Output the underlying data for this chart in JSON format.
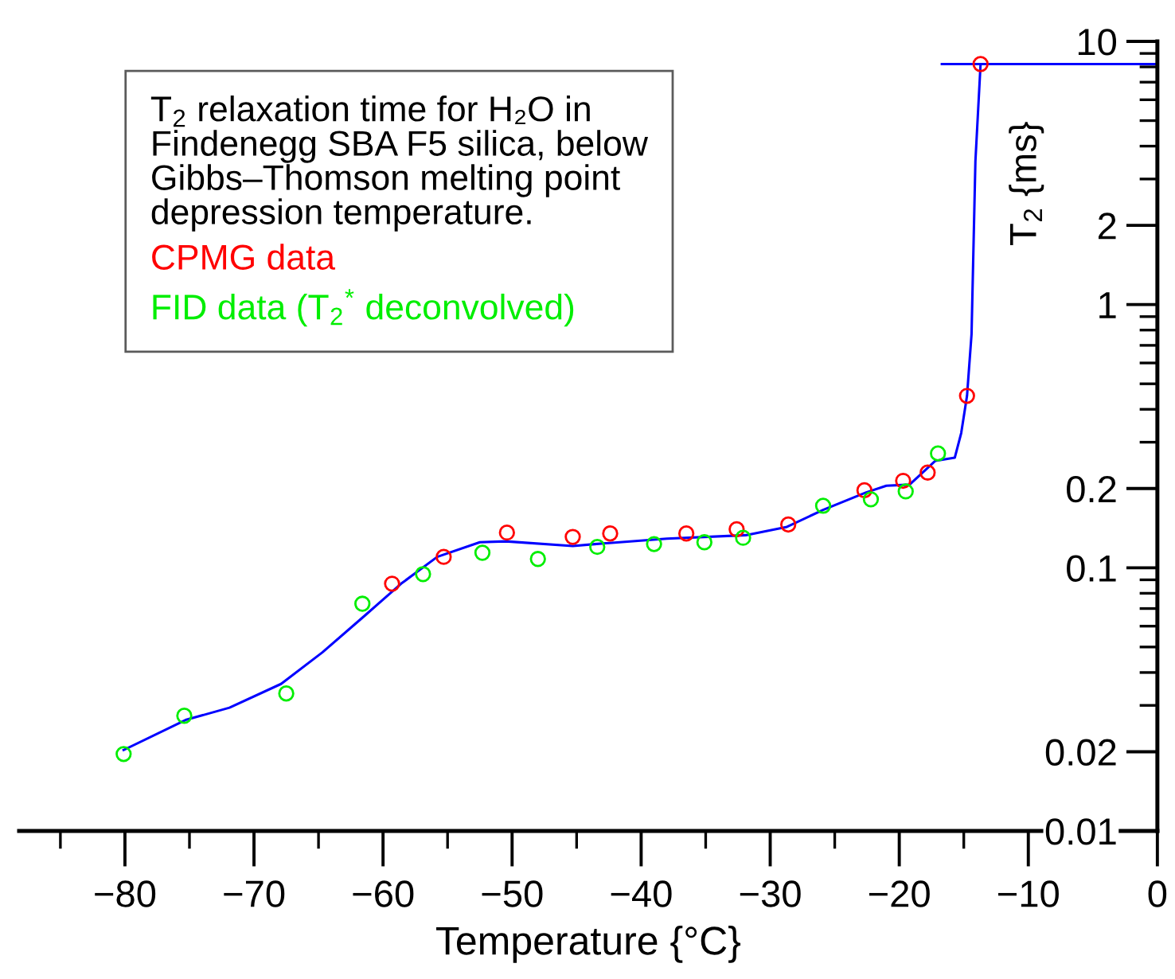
{
  "chart_data": {
    "type": "scatter",
    "xlabel": "Temperature {°C}",
    "ylabel": "T$_{2}$ {ms}",
    "annotations": [
      "T$_{2}$ relaxation time for H₂O in\nFindenegg SBA F5 silica, below\nGibbs–Thomson melting point\ndepression temperature."
    ],
    "series": [
      {
        "name": "CPMG data",
        "color": "#ff0000",
        "marker": "circle",
        "x": [
          -59.3,
          -55.3,
          -50.4,
          -45.3,
          -42.4,
          -36.5,
          -32.6,
          -28.6,
          -22.7,
          -19.7,
          -17.8,
          -14.75,
          -13.7
        ],
        "values": [
          0.087,
          0.11,
          0.136,
          0.131,
          0.135,
          0.135,
          0.14,
          0.146,
          0.197,
          0.214,
          0.23,
          0.45,
          8.2
        ]
      },
      {
        "name": "FID data (T$_{2}$$^{*}$ deconvolved)",
        "color": "#00ee00",
        "marker": "circle",
        "x": [
          -80.1,
          -75.4,
          -67.5,
          -61.6,
          -56.9,
          -52.3,
          -48.0,
          -43.4,
          -39.0,
          -35.1,
          -32.1,
          -25.9,
          -22.2,
          -19.5,
          -17.0
        ],
        "values": [
          0.0196,
          0.0274,
          0.0333,
          0.073,
          0.0946,
          0.114,
          0.108,
          0.12,
          0.123,
          0.125,
          0.13,
          0.172,
          0.182,
          0.195,
          0.272
        ]
      },
      {
        "type": "line",
        "color": "#0000ff",
        "x": [
          -80.1,
          -75.3,
          -71.9,
          -67.9,
          -64.7,
          -61.4,
          -58.6,
          -55.8,
          -52.5,
          -50.5,
          -45.3,
          -43.6,
          -38.0,
          -31.9,
          -28.7,
          -25.9,
          -22.6,
          -21.0,
          -19.2,
          -17.2,
          -15.7,
          -15.2,
          -14.75,
          -14.4,
          -14.1,
          -13.7
        ],
        "values": [
          0.0203,
          0.0264,
          0.0294,
          0.0362,
          0.0477,
          0.0659,
          0.087,
          0.11,
          0.125,
          0.126,
          0.121,
          0.123,
          0.129,
          0.133,
          0.143,
          0.166,
          0.193,
          0.205,
          0.207,
          0.255,
          0.262,
          0.325,
          0.45,
          0.77,
          3.5,
          8.2
        ]
      },
      {
        "type": "line",
        "color": "#0000ff",
        "x": [
          -16.7,
          0
        ],
        "values": [
          8.2,
          8.2
        ]
      }
    ],
    "xlim": [
      -88.2,
      0
    ],
    "xticks": [
      {
        "value": -80,
        "label": "−80"
      },
      {
        "value": -70,
        "label": "−70"
      },
      {
        "value": -60,
        "label": "−60"
      },
      {
        "value": -50,
        "label": "−50"
      },
      {
        "value": -40,
        "label": "−40"
      },
      {
        "value": -30,
        "label": "−30"
      },
      {
        "value": -20,
        "label": "−20"
      },
      {
        "value": -10,
        "label": "−10"
      },
      0
    ],
    "ylim": [
      0.01,
      10
    ],
    "yticks": [
      0.01,
      0.02,
      0.1,
      0.2,
      1,
      2,
      10
    ],
    "log": "y",
    "grid": false,
    "legend": "top left"
  }
}
